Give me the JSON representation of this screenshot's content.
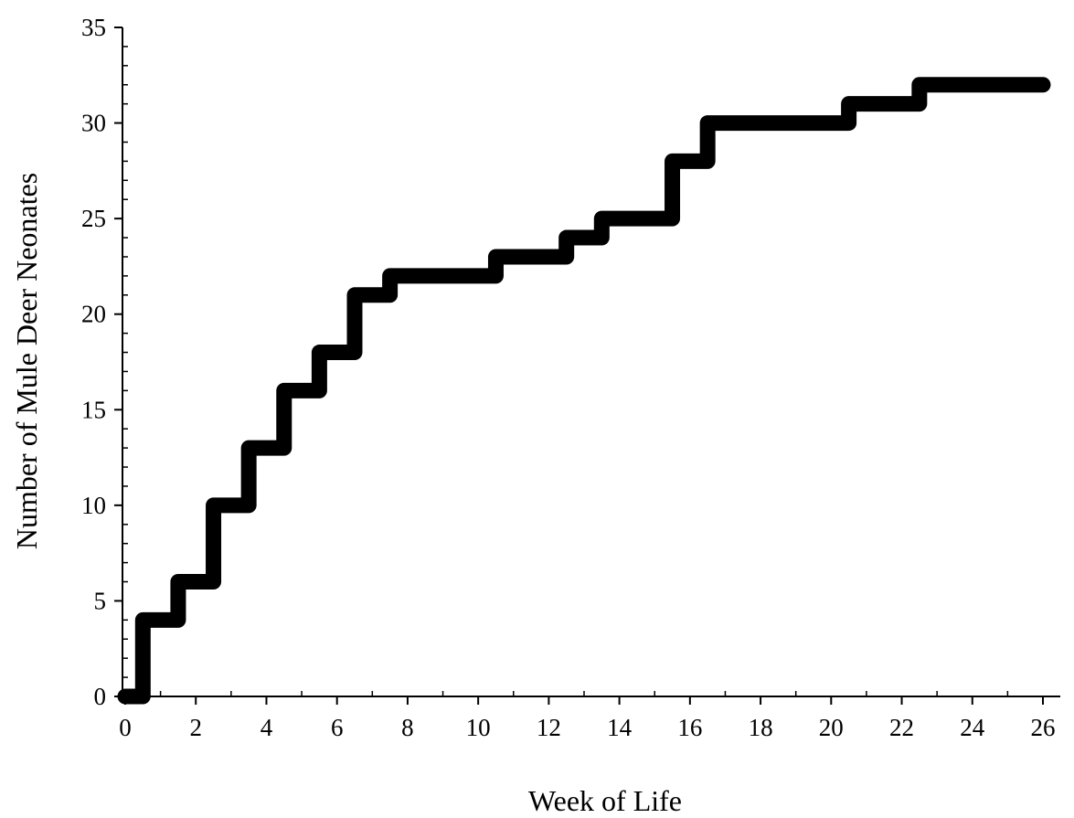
{
  "chart_data": {
    "type": "line",
    "subtype": "step",
    "title": "",
    "xlabel": "Week of Life",
    "ylabel": "Number of Mule Deer Neonates",
    "xlim": [
      0,
      26
    ],
    "ylim": [
      0,
      35
    ],
    "x_ticks": [
      "0",
      "2",
      "4",
      "6",
      "8",
      "10",
      "12",
      "14",
      "16",
      "18",
      "20",
      "22",
      "24",
      "26"
    ],
    "y_ticks": [
      "0",
      "5",
      "10",
      "15",
      "20",
      "25",
      "30",
      "35"
    ],
    "grid": false,
    "legend": "none",
    "series": [
      {
        "color": "#000000",
        "points": [
          {
            "x": 0,
            "y": 0
          },
          {
            "x": 0.5,
            "y": 4
          },
          {
            "x": 1.5,
            "y": 6
          },
          {
            "x": 2.5,
            "y": 10
          },
          {
            "x": 3.5,
            "y": 13
          },
          {
            "x": 4.5,
            "y": 16
          },
          {
            "x": 5.5,
            "y": 18
          },
          {
            "x": 6.5,
            "y": 21
          },
          {
            "x": 7.5,
            "y": 22
          },
          {
            "x": 10.5,
            "y": 23
          },
          {
            "x": 12.5,
            "y": 24
          },
          {
            "x": 13.5,
            "y": 25
          },
          {
            "x": 15.5,
            "y": 28
          },
          {
            "x": 16.5,
            "y": 30
          },
          {
            "x": 20.5,
            "y": 31
          },
          {
            "x": 22.5,
            "y": 32
          },
          {
            "x": 26,
            "y": 32
          }
        ]
      }
    ]
  }
}
